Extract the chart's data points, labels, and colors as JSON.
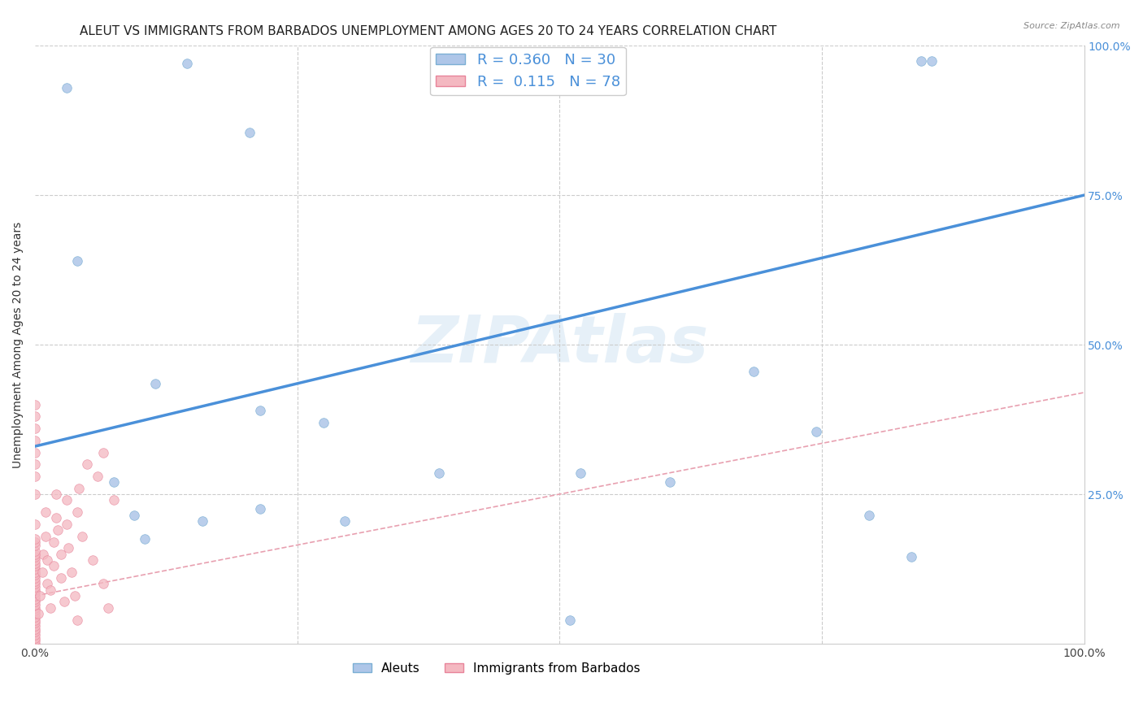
{
  "title": "ALEUT VS IMMIGRANTS FROM BARBADOS UNEMPLOYMENT AMONG AGES 20 TO 24 YEARS CORRELATION CHART",
  "source": "Source: ZipAtlas.com",
  "ylabel": "Unemployment Among Ages 20 to 24 years",
  "xmin": 0.0,
  "xmax": 1.0,
  "ymin": 0.0,
  "ymax": 1.0,
  "watermark": "ZIPAtlas",
  "aleut_color": "#aec6e8",
  "aleut_edge_color": "#7bafd4",
  "barbados_color": "#f4b8c1",
  "barbados_edge_color": "#e8849a",
  "aleut_line_color": "#4a90d9",
  "barbados_line_color": "#e8a0b0",
  "grid_color": "#cccccc",
  "title_fontsize": 11,
  "axis_label_fontsize": 10,
  "tick_fontsize": 10,
  "marker_size": 70,
  "aleut_line_x": [
    0.0,
    1.0
  ],
  "aleut_line_y": [
    0.33,
    0.75
  ],
  "barbados_line_x": [
    0.0,
    1.0
  ],
  "barbados_line_y": [
    0.08,
    0.42
  ],
  "aleut_x": [
    0.03,
    0.145,
    0.205,
    0.04,
    0.115,
    0.215,
    0.275,
    0.52,
    0.605,
    0.685,
    0.745,
    0.795,
    0.835,
    0.845,
    0.075,
    0.095,
    0.105,
    0.16,
    0.215,
    0.51,
    0.855,
    0.295,
    0.385
  ],
  "aleut_y": [
    0.93,
    0.97,
    0.855,
    0.64,
    0.435,
    0.39,
    0.37,
    0.285,
    0.27,
    0.455,
    0.355,
    0.215,
    0.145,
    0.975,
    0.27,
    0.215,
    0.175,
    0.205,
    0.225,
    0.04,
    0.975,
    0.205,
    0.285
  ],
  "barbados_x": [
    0.0,
    0.0,
    0.0,
    0.0,
    0.0,
    0.0,
    0.0,
    0.0,
    0.0,
    0.0,
    0.0,
    0.0,
    0.0,
    0.0,
    0.0,
    0.0,
    0.0,
    0.0,
    0.0,
    0.0,
    0.0,
    0.0,
    0.0,
    0.0,
    0.0,
    0.0,
    0.0,
    0.0,
    0.0,
    0.0,
    0.003,
    0.005,
    0.007,
    0.008,
    0.01,
    0.01,
    0.012,
    0.012,
    0.015,
    0.015,
    0.018,
    0.018,
    0.02,
    0.02,
    0.022,
    0.025,
    0.025,
    0.028,
    0.03,
    0.03,
    0.032,
    0.035,
    0.038,
    0.04,
    0.04,
    0.042,
    0.045,
    0.05,
    0.055,
    0.06,
    0.065,
    0.065,
    0.07,
    0.075,
    0.0,
    0.0,
    0.0,
    0.0,
    0.0,
    0.0,
    0.0,
    0.0,
    0.0,
    0.0,
    0.0,
    0.0,
    0.0,
    0.0
  ],
  "barbados_y": [
    0.0,
    0.005,
    0.01,
    0.015,
    0.02,
    0.025,
    0.03,
    0.035,
    0.04,
    0.045,
    0.05,
    0.055,
    0.06,
    0.065,
    0.07,
    0.075,
    0.08,
    0.085,
    0.09,
    0.095,
    0.1,
    0.105,
    0.11,
    0.115,
    0.12,
    0.125,
    0.13,
    0.135,
    0.14,
    0.145,
    0.05,
    0.08,
    0.12,
    0.15,
    0.18,
    0.22,
    0.14,
    0.1,
    0.06,
    0.09,
    0.13,
    0.17,
    0.21,
    0.25,
    0.19,
    0.15,
    0.11,
    0.07,
    0.24,
    0.2,
    0.16,
    0.12,
    0.08,
    0.04,
    0.22,
    0.26,
    0.18,
    0.3,
    0.14,
    0.28,
    0.1,
    0.32,
    0.06,
    0.24,
    0.15,
    0.2,
    0.25,
    0.28,
    0.3,
    0.32,
    0.34,
    0.36,
    0.38,
    0.4,
    0.155,
    0.165,
    0.17,
    0.175
  ]
}
